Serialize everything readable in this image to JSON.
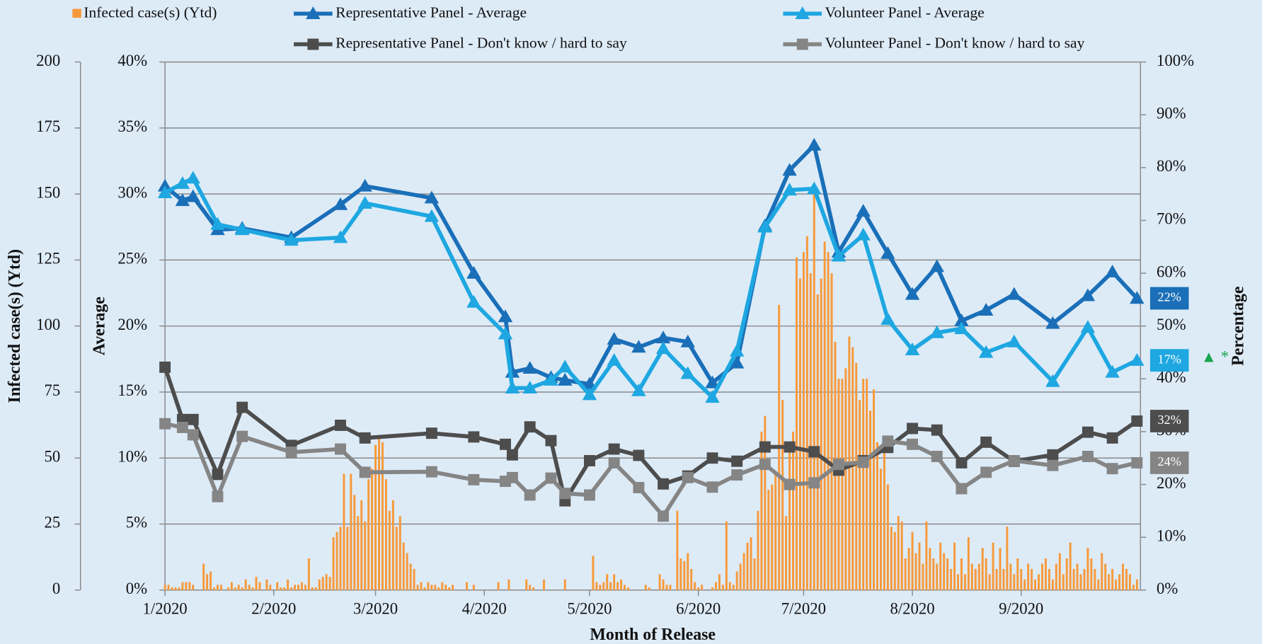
{
  "chart_data": {
    "type": "combo",
    "xlabel": "Month of Release",
    "ylabel": "Infected case(s) (Ytd)",
    "y2label": "Average",
    "y3label": "Percentage",
    "annotation": "▲ *",
    "xlim": [
      0,
      278
    ],
    "xticks": [
      {
        "value": 0,
        "label": "1/2020"
      },
      {
        "value": 31,
        "label": "2/2020"
      },
      {
        "value": 60,
        "label": "3/2020"
      },
      {
        "value": 91,
        "label": "4/2020"
      },
      {
        "value": 121,
        "label": "5/2020"
      },
      {
        "value": 152,
        "label": "6/2020"
      },
      {
        "value": 182,
        "label": "7/2020"
      },
      {
        "value": 213,
        "label": "8/2020"
      },
      {
        "value": 244,
        "label": "9/2020"
      }
    ],
    "ylim": [
      0,
      200
    ],
    "yticks": [
      0,
      25,
      50,
      75,
      100,
      125,
      150,
      175,
      200
    ],
    "y2lim": [
      0,
      40
    ],
    "y2ticks": [
      {
        "value": 0,
        "label": "0%"
      },
      {
        "value": 5,
        "label": "5%"
      },
      {
        "value": 10,
        "label": "10%"
      },
      {
        "value": 15,
        "label": "15%"
      },
      {
        "value": 20,
        "label": "20%"
      },
      {
        "value": 25,
        "label": "25%"
      },
      {
        "value": 30,
        "label": "30%"
      },
      {
        "value": 35,
        "label": "35%"
      },
      {
        "value": 40,
        "label": "40%"
      }
    ],
    "y3lim": [
      0,
      100
    ],
    "y3ticks": [
      {
        "value": 0,
        "label": "0%"
      },
      {
        "value": 10,
        "label": "10%"
      },
      {
        "value": 20,
        "label": "20%"
      },
      {
        "value": 30,
        "label": "30%"
      },
      {
        "value": 40,
        "label": "40%"
      },
      {
        "value": 50,
        "label": "50%"
      },
      {
        "value": 60,
        "label": "60%"
      },
      {
        "value": 70,
        "label": "70%"
      },
      {
        "value": 80,
        "label": "80%"
      },
      {
        "value": 90,
        "label": "90%"
      },
      {
        "value": 100,
        "label": "100%"
      }
    ],
    "grid": true,
    "x": [
      0,
      5,
      8,
      15,
      22,
      36,
      50,
      57,
      76,
      88,
      97,
      99,
      104,
      110,
      114,
      121,
      128,
      135,
      142,
      149,
      156,
      163,
      171,
      178,
      185,
      192,
      199,
      206,
      213,
      220,
      227,
      234,
      242,
      253,
      263,
      270,
      277
    ],
    "series": [
      {
        "name": "Infected case(s) (Ytd)",
        "type": "bar",
        "axis": "y",
        "color": "#f7993a",
        "x": [
          0,
          1,
          2,
          3,
          4,
          5,
          6,
          7,
          8,
          9,
          10,
          11,
          12,
          13,
          14,
          15,
          16,
          17,
          18,
          19,
          20,
          21,
          22,
          23,
          24,
          25,
          26,
          27,
          28,
          29,
          30,
          31,
          32,
          33,
          34,
          35,
          36,
          37,
          38,
          39,
          40,
          41,
          42,
          43,
          44,
          45,
          46,
          47,
          48,
          49,
          50,
          51,
          52,
          53,
          54,
          55,
          56,
          57,
          58,
          59,
          60,
          61,
          62,
          63,
          64,
          65,
          66,
          67,
          68,
          69,
          70,
          71,
          72,
          73,
          74,
          75,
          76,
          77,
          78,
          79,
          80,
          81,
          82,
          83,
          84,
          85,
          86,
          87,
          88,
          89,
          90,
          91,
          92,
          93,
          94,
          95,
          96,
          97,
          98,
          99,
          100,
          101,
          102,
          103,
          104,
          105,
          106,
          107,
          108,
          109,
          110,
          111,
          112,
          113,
          114,
          115,
          116,
          117,
          118,
          119,
          120,
          121,
          122,
          123,
          124,
          125,
          126,
          127,
          128,
          129,
          130,
          131,
          132,
          133,
          134,
          135,
          136,
          137,
          138,
          139,
          140,
          141,
          142,
          143,
          144,
          145,
          146,
          147,
          148,
          149,
          150,
          151,
          152,
          153,
          154,
          155,
          156,
          157,
          158,
          159,
          160,
          161,
          162,
          163,
          164,
          165,
          166,
          167,
          168,
          169,
          170,
          171,
          172,
          173,
          174,
          175,
          176,
          177,
          178,
          179,
          180,
          181,
          182,
          183,
          184,
          185,
          186,
          187,
          188,
          189,
          190,
          191,
          192,
          193,
          194,
          195,
          196,
          197,
          198,
          199,
          200,
          201,
          202,
          203,
          204,
          205,
          206,
          207,
          208,
          209,
          210,
          211,
          212,
          213,
          214,
          215,
          216,
          217,
          218,
          219,
          220,
          221,
          222,
          223,
          224,
          225,
          226,
          227,
          228,
          229,
          230,
          231,
          232,
          233,
          234,
          235,
          236,
          237,
          238,
          239,
          240,
          241,
          242,
          243,
          244,
          245,
          246,
          247,
          248,
          249,
          250,
          251,
          252,
          253,
          254,
          255,
          256,
          257,
          258,
          259,
          260,
          261,
          262,
          263,
          264,
          265,
          266,
          267,
          268,
          269,
          270,
          271,
          272,
          273,
          274,
          275,
          276,
          277
        ],
        "values": [
          2,
          2,
          1,
          1,
          1,
          3,
          3,
          3,
          2,
          0,
          0,
          10,
          6,
          7,
          1,
          2,
          2,
          0,
          1,
          3,
          1,
          2,
          1,
          4,
          2,
          1,
          5,
          3,
          0,
          4,
          2,
          0,
          3,
          1,
          1,
          4,
          1,
          2,
          2,
          3,
          2,
          12,
          1,
          1,
          4,
          5,
          6,
          5,
          20,
          22,
          24,
          44,
          24,
          44,
          36,
          28,
          34,
          26,
          42,
          46,
          55,
          58,
          56,
          42,
          30,
          34,
          24,
          28,
          18,
          14,
          10,
          8,
          2,
          3,
          1,
          3,
          2,
          2,
          1,
          3,
          2,
          1,
          2,
          0,
          0,
          0,
          3,
          0,
          2,
          0,
          0,
          0,
          0,
          0,
          0,
          3,
          0,
          0,
          4,
          0,
          0,
          0,
          0,
          4,
          2,
          1,
          0,
          0,
          4,
          0,
          0,
          0,
          0,
          0,
          4,
          0,
          0,
          0,
          0,
          0,
          0,
          0,
          13,
          3,
          2,
          3,
          6,
          3,
          6,
          3,
          4,
          2,
          1,
          0,
          0,
          0,
          0,
          2,
          1,
          0,
          0,
          6,
          4,
          2,
          2,
          0,
          30,
          12,
          11,
          14,
          8,
          3,
          1,
          2,
          0,
          0,
          1,
          3,
          6,
          2,
          26,
          3,
          2,
          7,
          10,
          14,
          18,
          20,
          12,
          30,
          60,
          66,
          38,
          40,
          44,
          108,
          72,
          28,
          54,
          60,
          126,
          118,
          128,
          134,
          120,
          150,
          112,
          118,
          132,
          128,
          120,
          94,
          80,
          80,
          84,
          96,
          92,
          86,
          72,
          80,
          80,
          68,
          76,
          56,
          46,
          52,
          40,
          24,
          22,
          28,
          26,
          12,
          16,
          22,
          14,
          18,
          10,
          26,
          16,
          12,
          10,
          18,
          14,
          12,
          8,
          18,
          6,
          12,
          6,
          20,
          10,
          8,
          10,
          16,
          12,
          6,
          18,
          8,
          16,
          8,
          24,
          10,
          6,
          12,
          8,
          4,
          10,
          8,
          4,
          6,
          10,
          12,
          8,
          4,
          10,
          14,
          6,
          12,
          18,
          8,
          10,
          6,
          8,
          16,
          12,
          8,
          4,
          14,
          10,
          6,
          8,
          4,
          6,
          10,
          8,
          6,
          2,
          4
        ]
      },
      {
        "name": "Representative Panel - Average",
        "type": "line",
        "marker": "triangle",
        "axis": "y2",
        "color": "#1a6fb8",
        "end_label": "22%",
        "values": [
          30.6,
          29.5,
          29.8,
          27.3,
          27.4,
          26.7,
          29.2,
          30.6,
          29.7,
          24.0,
          20.7,
          16.5,
          16.8,
          16.1,
          15.9,
          15.6,
          19.0,
          18.4,
          19.1,
          18.8,
          15.7,
          17.2,
          27.6,
          31.8,
          33.7,
          25.6,
          28.7,
          25.5,
          22.4,
          24.5,
          20.4,
          21.2,
          22.4,
          20.2,
          22.3,
          24.1,
          22.1
        ]
      },
      {
        "name": "Volunteer Panel - Average",
        "type": "line",
        "marker": "triangle",
        "axis": "y2",
        "color": "#1ea7e1",
        "end_label": "17%",
        "values": [
          30.1,
          30.8,
          31.2,
          27.7,
          27.3,
          26.5,
          26.7,
          29.3,
          28.3,
          21.8,
          19.4,
          15.3,
          15.3,
          15.9,
          16.9,
          14.8,
          17.4,
          15.1,
          18.3,
          16.4,
          14.6,
          18.1,
          27.5,
          30.3,
          30.4,
          25.3,
          26.9,
          20.5,
          18.2,
          19.5,
          19.8,
          18.0,
          18.8,
          15.8,
          19.9,
          16.5,
          17.4
        ]
      },
      {
        "name": "Representative Panel - Don't know / hard to say",
        "type": "line",
        "marker": "square",
        "axis": "y3",
        "color": "#4d4d4d",
        "end_label": "32%",
        "values": [
          42.2,
          32.3,
          32.3,
          21.9,
          34.6,
          27.4,
          31.2,
          28.8,
          29.7,
          29.0,
          27.6,
          25.6,
          30.9,
          28.3,
          16.9,
          24.5,
          26.7,
          25.5,
          20.1,
          21.6,
          25.0,
          24.4,
          27.1,
          27.1,
          26.2,
          22.7,
          24.5,
          27.0,
          30.6,
          30.3,
          24.1,
          28.0,
          24.4,
          25.6,
          29.9,
          28.8,
          32.0
        ]
      },
      {
        "name": "Volunteer Panel - Don't know / hard to say",
        "type": "line",
        "marker": "square",
        "axis": "y3",
        "color": "#858585",
        "end_label": "24%",
        "values": [
          31.5,
          30.8,
          29.4,
          17.7,
          29.1,
          26.1,
          26.7,
          22.3,
          22.4,
          20.9,
          20.6,
          21.3,
          18.0,
          21.2,
          18.3,
          18.0,
          24.1,
          19.4,
          14.0,
          21.3,
          19.5,
          21.8,
          23.8,
          20.0,
          20.3,
          23.8,
          24.2,
          28.2,
          27.6,
          25.3,
          19.2,
          22.3,
          24.5,
          23.6,
          25.3,
          23.0,
          24.1
        ]
      }
    ]
  }
}
